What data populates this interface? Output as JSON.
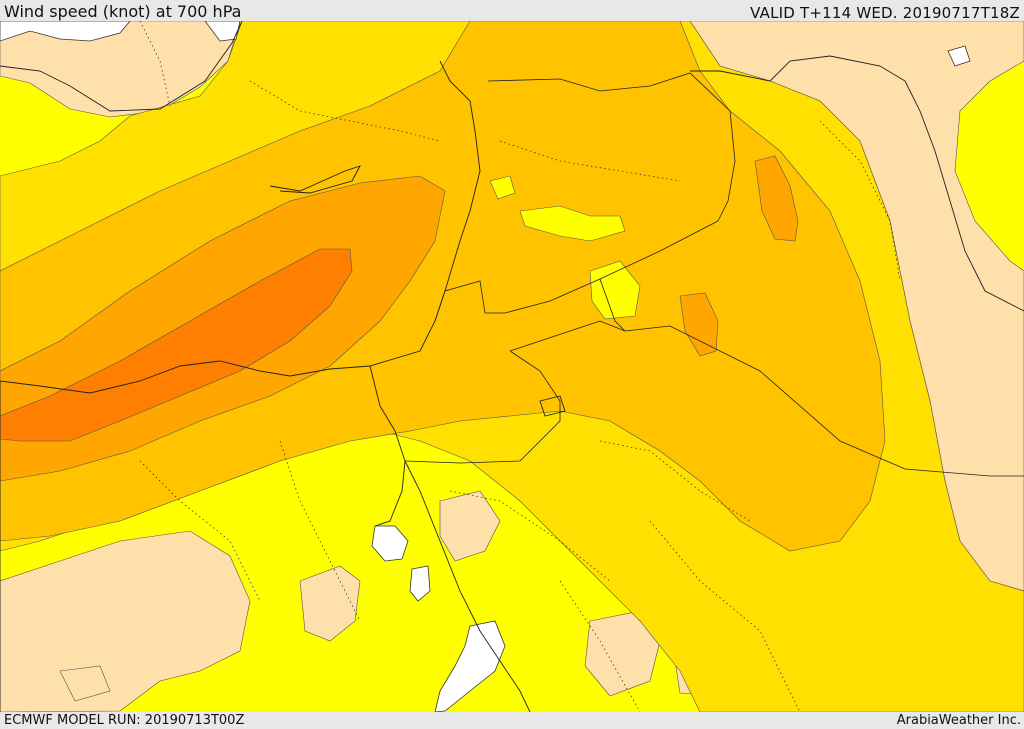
{
  "header": {
    "title": "Wind speed (knot) at 700 hPa",
    "valid": "VALID T+114 WED. 20190717T18Z"
  },
  "footer": {
    "model_run": "ECMWF MODEL RUN: 20190713T00Z",
    "credit": "ArabiaWeather Inc."
  },
  "map": {
    "fill_colors": {
      "sea": "#ffffff",
      "calm": "#ffdfaa",
      "light": "#ffff00",
      "moderate": "#ffe000",
      "fresh": "#ffc300",
      "strong": "#ffa600",
      "very_strong": "#ff7f00"
    }
  }
}
